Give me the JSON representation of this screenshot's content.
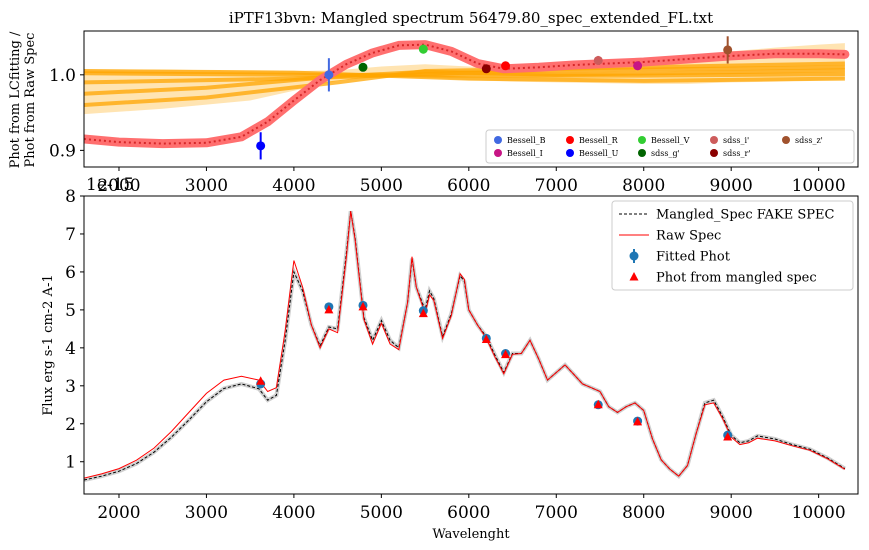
{
  "chart_data": [
    {
      "type": "line",
      "title": "iPTF13bvn: Mangled spectrum 56479.80_spec_extended_FL.txt",
      "ylabel_line1": "Phot from LCfitting /",
      "ylabel_line2": "Phot from Raw Spec",
      "xlim": [
        1600,
        10450
      ],
      "ylim": [
        0.878,
        1.058
      ],
      "xticks": [
        2000,
        3000,
        4000,
        5000,
        6000,
        7000,
        8000,
        9000,
        10000
      ],
      "yticks": [
        0.9,
        1.0
      ],
      "ytick_labels": [
        "0.9",
        "1.0"
      ],
      "colors": {
        "band_fill": "#ffa500",
        "ratio_fill": "#ff6f6f",
        "ratio_line": "#d62728"
      },
      "ratio_curve": {
        "x": [
          1600,
          2000,
          2500,
          3000,
          3400,
          3700,
          4000,
          4300,
          4600,
          4900,
          5200,
          5500,
          5800,
          6100,
          6400,
          6800,
          7200,
          7600,
          8000,
          8500,
          9000,
          9500,
          10000,
          10300
        ],
        "y": [
          0.915,
          0.911,
          0.909,
          0.91,
          0.918,
          0.938,
          0.966,
          0.993,
          1.014,
          1.029,
          1.039,
          1.04,
          1.031,
          1.015,
          1.008,
          1.01,
          1.013,
          1.015,
          1.017,
          1.021,
          1.025,
          1.028,
          1.028,
          1.027
        ]
      },
      "band_envelope": {
        "x": [
          1600,
          2500,
          3500,
          4000,
          4500,
          5000,
          5500,
          6000,
          6500,
          7000,
          7500,
          8000,
          8500,
          9000,
          9500,
          10000,
          10300
        ],
        "upper": [
          1.007,
          1.007,
          1.005,
          1.005,
          1.006,
          1.011,
          1.014,
          1.011,
          1.008,
          1.008,
          1.012,
          1.018,
          1.024,
          1.031,
          1.036,
          1.04,
          1.042
        ],
        "lower": [
          0.948,
          0.955,
          0.966,
          0.979,
          0.992,
          0.998,
          0.996,
          0.993,
          0.991,
          0.99,
          0.989,
          0.988,
          0.988,
          0.99,
          0.991,
          0.993,
          0.994
        ]
      },
      "band_lines": [
        {
          "x": [
            1600,
            4000,
            6000,
            8000,
            10300
          ],
          "y": [
            1.002,
            1.0,
            0.999,
            0.999,
            1.001
          ]
        },
        {
          "x": [
            1600,
            4000,
            6000,
            8000,
            10300
          ],
          "y": [
            0.99,
            0.995,
            1.003,
            1.007,
            1.01
          ]
        },
        {
          "x": [
            1600,
            3000,
            4500,
            5500,
            7000,
            10300
          ],
          "y": [
            0.975,
            0.983,
            0.998,
            1.004,
            1.0,
            1.006
          ]
        },
        {
          "x": [
            1600,
            3000,
            4500,
            5500,
            7000,
            10300
          ],
          "y": [
            0.96,
            0.97,
            0.99,
            1.005,
            1.008,
            1.015
          ]
        },
        {
          "x": [
            1600,
            4000,
            6000,
            8000,
            10300
          ],
          "y": [
            1.005,
            1.003,
            0.995,
            0.992,
            0.995
          ]
        }
      ],
      "points": [
        {
          "name": "Bessell_B",
          "color": "#4169e1",
          "x": 4400,
          "y": 1.0,
          "err": 0.022
        },
        {
          "name": "Bessell_I",
          "color": "#c71585",
          "x": 7930,
          "y": 1.012,
          "err": 0.002
        },
        {
          "name": "Bessell_R",
          "color": "#ff0000",
          "x": 6420,
          "y": 1.012,
          "err": 0.004
        },
        {
          "name": "Bessell_U",
          "color": "#0000ff",
          "x": 3620,
          "y": 0.906,
          "err": 0.018
        },
        {
          "name": "Bessell_V",
          "color": "#32cd32",
          "x": 5480,
          "y": 1.034,
          "err": 0.006
        },
        {
          "name": "sdss_g'",
          "color": "#006400",
          "x": 4790,
          "y": 1.01,
          "err": 0.002
        },
        {
          "name": "sdss_i'",
          "color": "#cd5c5c",
          "x": 7480,
          "y": 1.019,
          "err": 0.006
        },
        {
          "name": "sdss_r'",
          "color": "#8b0000",
          "x": 6200,
          "y": 1.008,
          "err": 0.002
        },
        {
          "name": "sdss_z'",
          "color": "#a0522d",
          "x": 8960,
          "y": 1.033,
          "err": 0.018
        }
      ],
      "legend": [
        {
          "label": "Bessell_B",
          "color": "#4169e1"
        },
        {
          "label": "Bessell_R",
          "color": "#ff0000"
        },
        {
          "label": "Bessell_V",
          "color": "#32cd32"
        },
        {
          "label": "sdss_i'",
          "color": "#cd5c5c"
        },
        {
          "label": "sdss_z'",
          "color": "#a0522d"
        },
        {
          "label": "Bessell_I",
          "color": "#c71585"
        },
        {
          "label": "Bessell_U",
          "color": "#0000ff"
        },
        {
          "label": "sdss_g'",
          "color": "#006400"
        },
        {
          "label": "sdss_r'",
          "color": "#8b0000"
        }
      ],
      "legend_location": "lower-right"
    },
    {
      "type": "line",
      "offset_text": "1e-15",
      "xlabel": "Wavelenght",
      "ylabel": "Flux erg s-1 cm-2 A-1",
      "xlim": [
        1600,
        10450
      ],
      "ylim": [
        0.15,
        8.0
      ],
      "xticks": [
        2000,
        3000,
        4000,
        5000,
        6000,
        7000,
        8000,
        9000,
        10000
      ],
      "yticks": [
        1,
        2,
        3,
        4,
        5,
        6,
        7,
        8
      ],
      "colors": {
        "raw": "#ff0000",
        "mangled": "#000000",
        "fitted": "#1f77b4",
        "phot_mangled": "#ff0000"
      },
      "series": [
        {
          "name": "Mangled_Spec FAKE SPEC",
          "x": [
            1600,
            1800,
            2000,
            2200,
            2400,
            2600,
            2800,
            3000,
            3200,
            3400,
            3600,
            3700,
            3800,
            3900,
            4000,
            4100,
            4200,
            4300,
            4400,
            4500,
            4600,
            4650,
            4700,
            4800,
            4900,
            5000,
            5100,
            5200,
            5300,
            5350,
            5400,
            5500,
            5550,
            5600,
            5700,
            5800,
            5900,
            5950,
            6000,
            6100,
            6200,
            6300,
            6400,
            6500,
            6600,
            6700,
            6800,
            6900,
            7000,
            7100,
            7200,
            7300,
            7400,
            7500,
            7600,
            7700,
            7800,
            7900,
            8000,
            8100,
            8200,
            8300,
            8400,
            8500,
            8600,
            8700,
            8800,
            8900,
            9000,
            9100,
            9200,
            9300,
            9500,
            9700,
            9900,
            10100,
            10300
          ],
          "y": [
            0.52,
            0.62,
            0.75,
            0.95,
            1.25,
            1.65,
            2.1,
            2.58,
            2.93,
            3.05,
            2.92,
            2.62,
            2.75,
            4.2,
            6.0,
            5.5,
            4.6,
            4.05,
            4.55,
            4.5,
            6.5,
            7.6,
            6.9,
            4.8,
            4.2,
            4.72,
            4.2,
            4.0,
            5.2,
            6.35,
            5.6,
            5.0,
            5.5,
            5.3,
            4.3,
            4.9,
            5.9,
            5.75,
            5.0,
            4.6,
            4.3,
            3.8,
            3.35,
            3.85,
            3.85,
            4.2,
            3.7,
            3.15,
            3.35,
            3.55,
            3.3,
            3.05,
            2.95,
            2.85,
            2.45,
            2.3,
            2.45,
            2.55,
            2.35,
            1.6,
            1.05,
            0.8,
            0.62,
            0.9,
            1.75,
            2.55,
            2.62,
            2.2,
            1.7,
            1.5,
            1.55,
            1.68,
            1.6,
            1.45,
            1.33,
            1.1,
            0.82
          ]
        },
        {
          "name": "Raw Spec",
          "x": [
            1600,
            1800,
            2000,
            2200,
            2400,
            2600,
            2800,
            3000,
            3200,
            3400,
            3600,
            3700,
            3800,
            3900,
            4000,
            4100,
            4200,
            4300,
            4400,
            4500,
            4600,
            4650,
            4700,
            4800,
            4900,
            5000,
            5100,
            5200,
            5300,
            5350,
            5400,
            5500,
            5550,
            5600,
            5700,
            5800,
            5900,
            5950,
            6000,
            6100,
            6200,
            6300,
            6400,
            6500,
            6600,
            6700,
            6800,
            6900,
            7000,
            7100,
            7200,
            7300,
            7400,
            7500,
            7600,
            7700,
            7800,
            7900,
            8000,
            8100,
            8200,
            8300,
            8400,
            8500,
            8600,
            8700,
            8800,
            8900,
            9000,
            9100,
            9200,
            9300,
            9500,
            9700,
            9900,
            10100,
            10300
          ],
          "y": [
            0.57,
            0.68,
            0.82,
            1.04,
            1.36,
            1.8,
            2.3,
            2.8,
            3.15,
            3.25,
            3.15,
            2.85,
            2.95,
            4.45,
            6.3,
            5.6,
            4.6,
            4.0,
            4.5,
            4.4,
            6.4,
            7.6,
            6.85,
            4.75,
            4.1,
            4.65,
            4.1,
            3.95,
            5.2,
            6.4,
            5.6,
            4.9,
            5.4,
            5.25,
            4.25,
            4.85,
            5.95,
            5.8,
            5.0,
            4.6,
            4.25,
            3.75,
            3.32,
            3.83,
            3.85,
            4.2,
            3.7,
            3.15,
            3.35,
            3.55,
            3.3,
            3.05,
            2.95,
            2.85,
            2.45,
            2.3,
            2.45,
            2.55,
            2.35,
            1.6,
            1.05,
            0.8,
            0.62,
            0.9,
            1.75,
            2.5,
            2.55,
            2.15,
            1.65,
            1.45,
            1.5,
            1.62,
            1.55,
            1.42,
            1.3,
            1.08,
            0.8
          ]
        }
      ],
      "fitted_phot": {
        "name": "Fitted Phot",
        "x": [
          3620,
          4400,
          4790,
          5480,
          6200,
          6420,
          7480,
          7930,
          8960
        ],
        "y": [
          3.05,
          5.08,
          5.12,
          4.98,
          4.25,
          3.85,
          2.5,
          2.07,
          1.7
        ]
      },
      "phot_mangled": {
        "name": "Phot from mangled spec",
        "x": [
          3620,
          4400,
          4790,
          5480,
          6200,
          6420,
          7480,
          7930,
          8960
        ],
        "y": [
          3.12,
          5.0,
          5.08,
          4.9,
          4.22,
          3.82,
          2.5,
          2.05,
          1.65
        ]
      },
      "legend_location": "upper-right"
    }
  ]
}
